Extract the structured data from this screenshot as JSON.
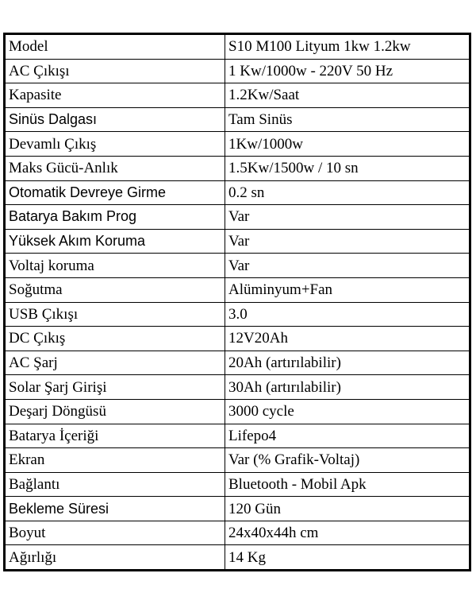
{
  "table": {
    "rows": [
      [
        "Model",
        "S10 M100 Lityum 1kw 1.2kw"
      ],
      [
        "AC Çıkışı",
        "1 Kw/1000w - 220V 50 Hz"
      ],
      [
        "Kapasite",
        "1.2Kw/Saat"
      ],
      [
        "Sinüs Dalgası",
        "Tam Sinüs"
      ],
      [
        "Devamlı Çıkış",
        "1Kw/1000w"
      ],
      [
        "Maks Gücü-Anlık",
        "1.5Kw/1500w / 10 sn"
      ],
      [
        "Otomatik Devreye Girme",
        "0.2 sn"
      ],
      [
        "Batarya Bakım Prog",
        "Var"
      ],
      [
        "Yüksek Akım Koruma",
        "Var"
      ],
      [
        "Voltaj koruma",
        "Var"
      ],
      [
        "Soğutma",
        "Alüminyum+Fan"
      ],
      [
        "USB Çıkışı",
        "3.0"
      ],
      [
        "DC Çıkış",
        "12V20Ah"
      ],
      [
        "AC Şarj",
        "20Ah (artırılabilir)"
      ],
      [
        "Solar Şarj Girişi",
        "30Ah (artırılabilir)"
      ],
      [
        "Deşarj Döngüsü",
        "3000 cycle"
      ],
      [
        "Batarya İçeriği",
        "Lifepo4"
      ],
      [
        "Ekran",
        "Var (% Grafik-Voltaj)"
      ],
      [
        "Bağlantı",
        "Bluetooth - Mobil Apk"
      ],
      [
        "Bekleme Süresi",
        "120 Gün"
      ],
      [
        "Boyut",
        "24x40x44h cm"
      ],
      [
        "Ağırlığı",
        "14 Kg"
      ]
    ]
  }
}
